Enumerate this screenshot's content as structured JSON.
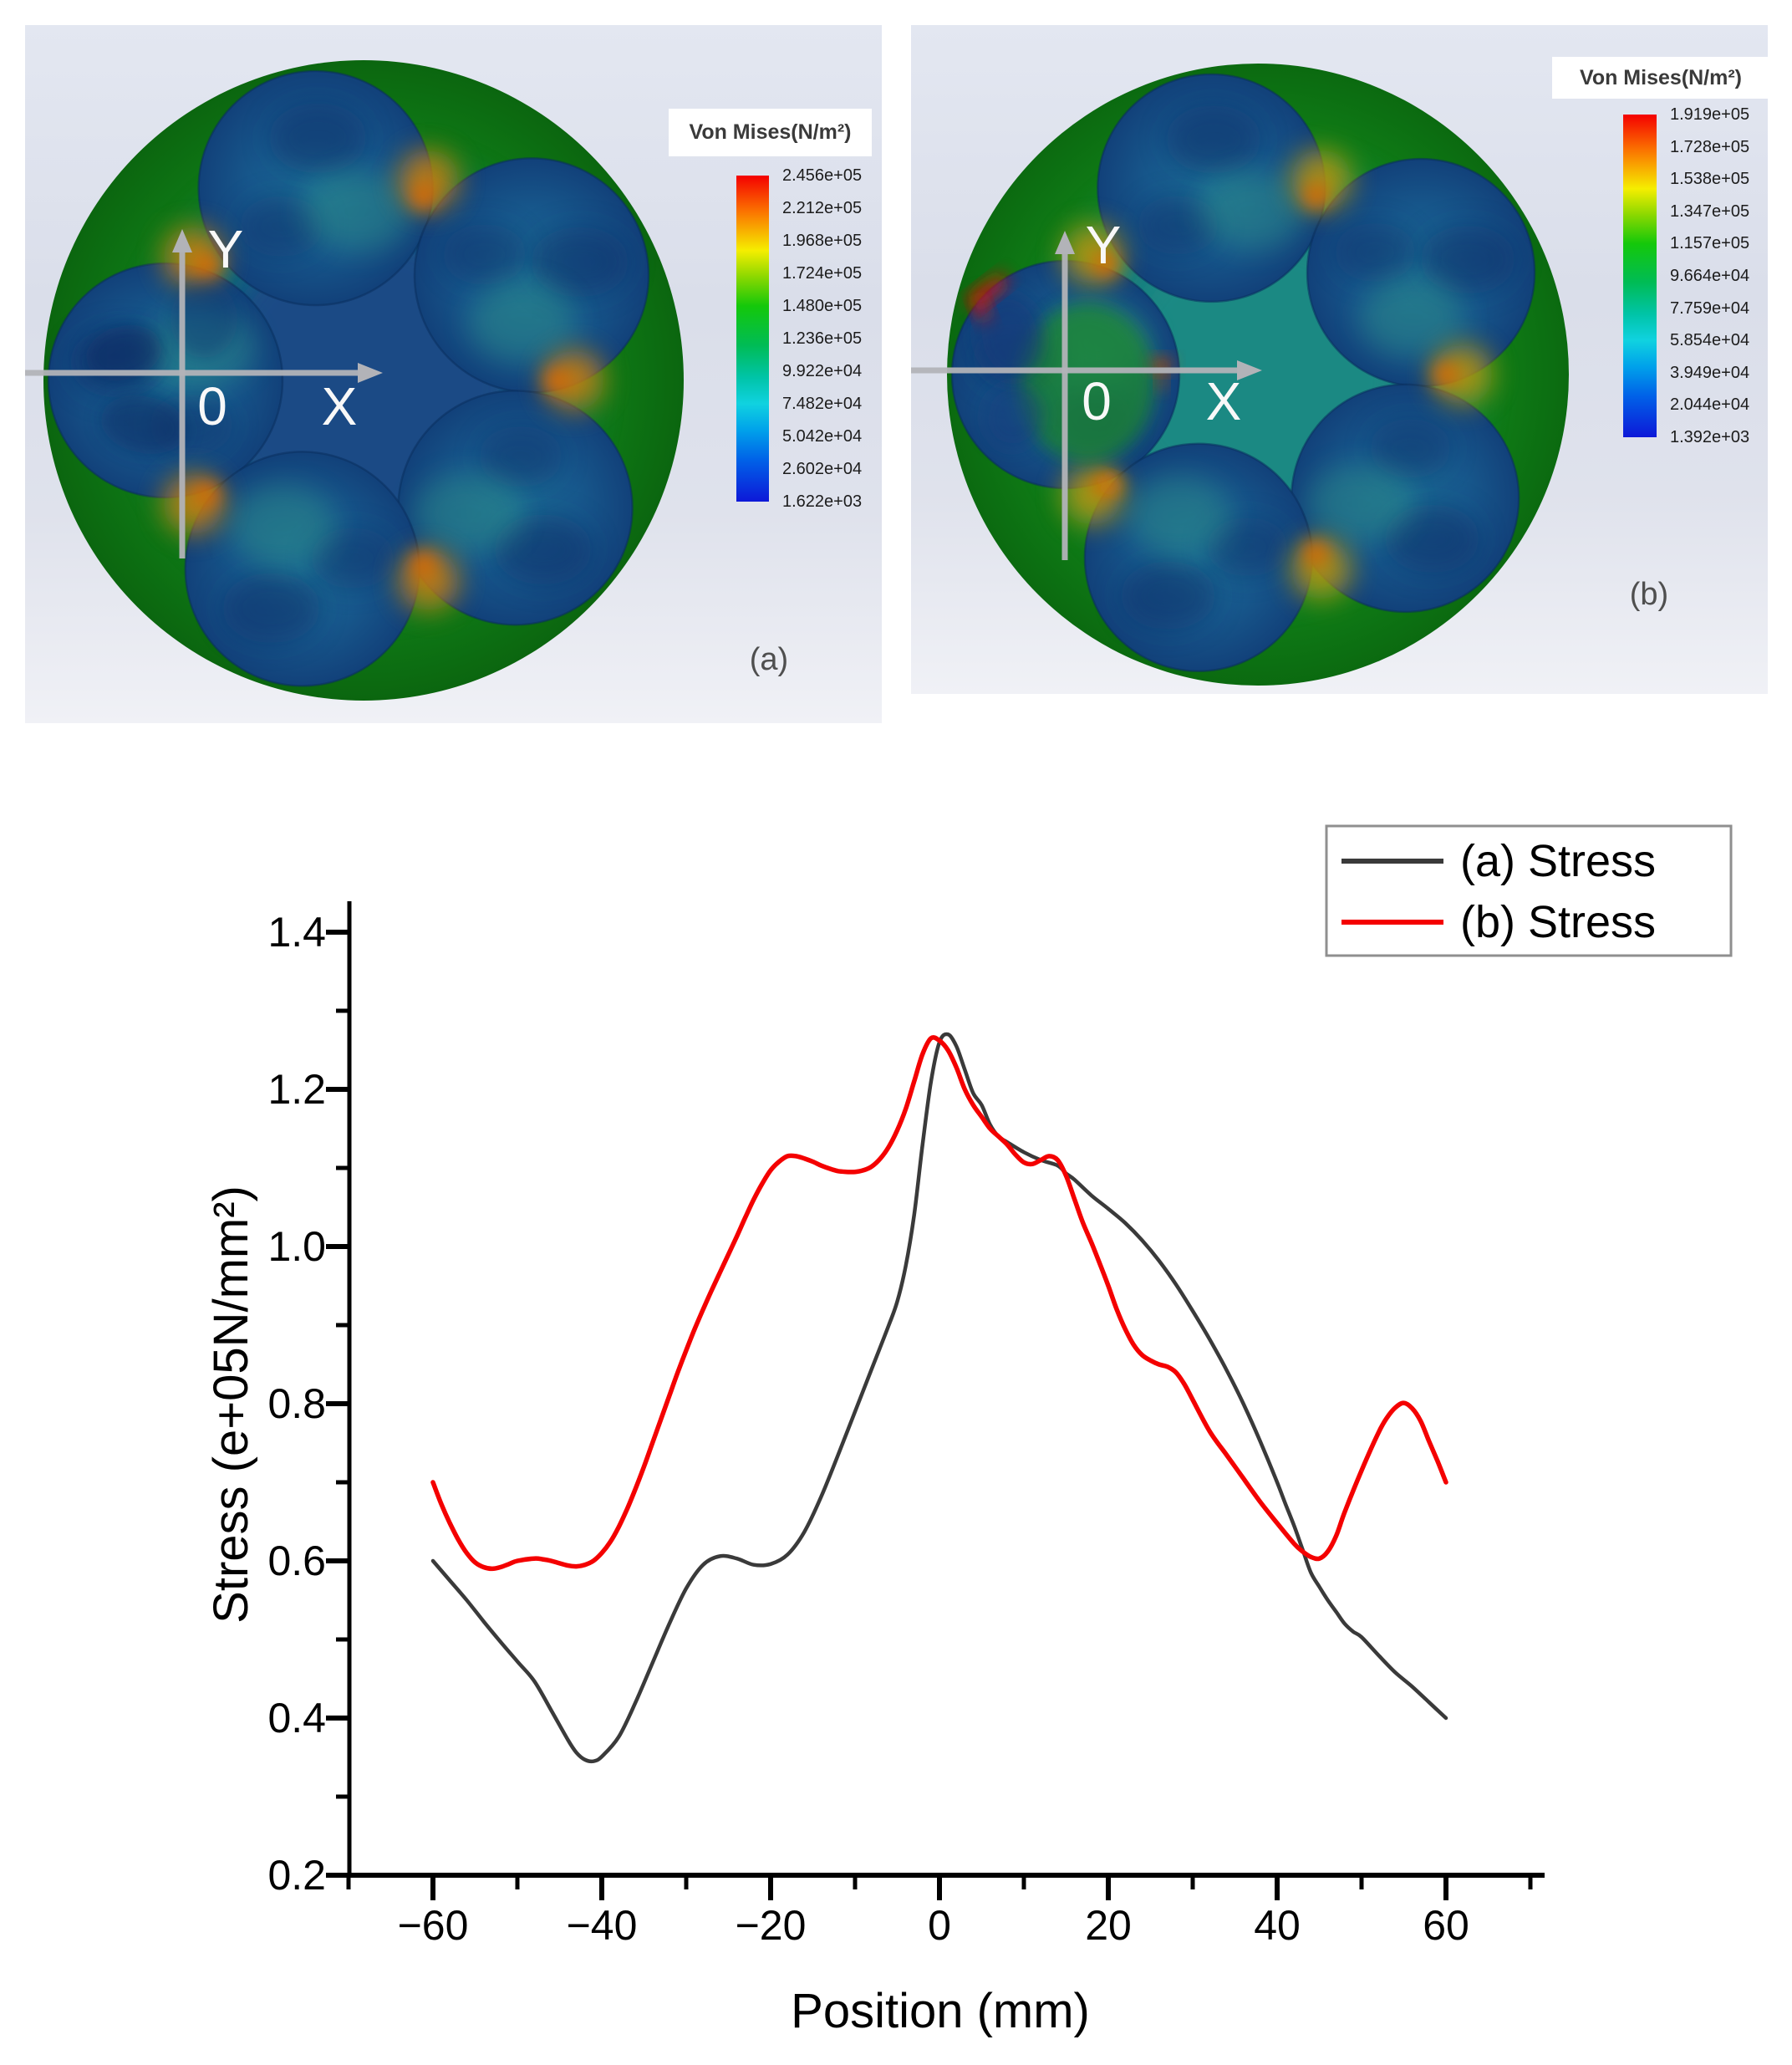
{
  "figure": {
    "panel_a": {
      "caption": "(a)",
      "legend_title": "Von Mises(N/m²)",
      "colorbar_values": [
        "2.456e+05",
        "2.212e+05",
        "1.968e+05",
        "1.724e+05",
        "1.480e+05",
        "1.236e+05",
        "9.922e+04",
        "7.482e+04",
        "5.042e+04",
        "2.602e+04",
        "1.622e+03"
      ]
    },
    "panel_b": {
      "caption": "(b)",
      "legend_title": "Von Mises(N/m²)",
      "colorbar_values": [
        "1.919e+05",
        "1.728e+05",
        "1.538e+05",
        "1.347e+05",
        "1.157e+05",
        "9.664e+04",
        "7.759e+04",
        "5.854e+04",
        "3.949e+04",
        "2.044e+04",
        "1.392e+03"
      ]
    },
    "axes_overlay": {
      "y_label": "Y",
      "x_label": "X",
      "origin_label": "0"
    }
  },
  "chart_data": {
    "type": "line",
    "title": "",
    "xlabel": "Position (mm)",
    "ylabel": "Stress (e+05N/mm²)",
    "xlim": [
      -70,
      71
    ],
    "ylim": [
      0.2,
      1.44
    ],
    "x_ticks": [
      -60,
      -40,
      -20,
      0,
      20,
      40,
      60
    ],
    "x_minor_ticks": [
      -70,
      -50,
      -30,
      -10,
      10,
      30,
      50,
      70
    ],
    "y_ticks": [
      "0.2",
      "0.4",
      "0.6",
      "0.8",
      "1.0",
      "1.2",
      "1.4"
    ],
    "y_minor_ticks": [
      0.3,
      0.5,
      0.7,
      0.9,
      1.1,
      1.3
    ],
    "grid": false,
    "legend_position": "top-right",
    "series": [
      {
        "name": "(a) Stress",
        "color": "#3a3a3a",
        "points": [
          [
            -60,
            0.6
          ],
          [
            -58,
            0.575
          ],
          [
            -56,
            0.55
          ],
          [
            -54,
            0.523
          ],
          [
            -52,
            0.497
          ],
          [
            -50,
            0.472
          ],
          [
            -48,
            0.447
          ],
          [
            -46,
            0.41
          ],
          [
            -44,
            0.372
          ],
          [
            -43,
            0.356
          ],
          [
            -42,
            0.347
          ],
          [
            -41,
            0.345
          ],
          [
            -40,
            0.351
          ],
          [
            -38,
            0.376
          ],
          [
            -36,
            0.42
          ],
          [
            -34,
            0.47
          ],
          [
            -32,
            0.52
          ],
          [
            -30,
            0.565
          ],
          [
            -28,
            0.595
          ],
          [
            -26,
            0.606
          ],
          [
            -24,
            0.603
          ],
          [
            -22,
            0.595
          ],
          [
            -20,
            0.596
          ],
          [
            -18,
            0.608
          ],
          [
            -16,
            0.637
          ],
          [
            -14,
            0.682
          ],
          [
            -12,
            0.735
          ],
          [
            -10,
            0.79
          ],
          [
            -8,
            0.845
          ],
          [
            -6,
            0.9
          ],
          [
            -5,
            0.93
          ],
          [
            -4,
            0.975
          ],
          [
            -3,
            1.04
          ],
          [
            -2,
            1.13
          ],
          [
            -1,
            1.21
          ],
          [
            0,
            1.26
          ],
          [
            1,
            1.27
          ],
          [
            2,
            1.255
          ],
          [
            3,
            1.225
          ],
          [
            4,
            1.195
          ],
          [
            5,
            1.18
          ],
          [
            6,
            1.155
          ],
          [
            7,
            1.14
          ],
          [
            8,
            1.133
          ],
          [
            10,
            1.12
          ],
          [
            12,
            1.11
          ],
          [
            14,
            1.103
          ],
          [
            15,
            1.093
          ],
          [
            16,
            1.085
          ],
          [
            18,
            1.065
          ],
          [
            20,
            1.048
          ],
          [
            22,
            1.03
          ],
          [
            24,
            1.008
          ],
          [
            26,
            0.982
          ],
          [
            28,
            0.952
          ],
          [
            30,
            0.918
          ],
          [
            32,
            0.882
          ],
          [
            34,
            0.843
          ],
          [
            36,
            0.8
          ],
          [
            38,
            0.752
          ],
          [
            40,
            0.7
          ],
          [
            41,
            0.672
          ],
          [
            42,
            0.645
          ],
          [
            43,
            0.615
          ],
          [
            44,
            0.585
          ],
          [
            45,
            0.567
          ],
          [
            46,
            0.55
          ],
          [
            47,
            0.535
          ],
          [
            48,
            0.52
          ],
          [
            49,
            0.51
          ],
          [
            50,
            0.503
          ],
          [
            52,
            0.48
          ],
          [
            54,
            0.458
          ],
          [
            56,
            0.44
          ],
          [
            58,
            0.42
          ],
          [
            60,
            0.4
          ]
        ]
      },
      {
        "name": "(b) Stress",
        "color": "#f40000",
        "points": [
          [
            -60,
            0.7
          ],
          [
            -59,
            0.672
          ],
          [
            -58,
            0.648
          ],
          [
            -57,
            0.627
          ],
          [
            -56,
            0.61
          ],
          [
            -55,
            0.598
          ],
          [
            -54,
            0.592
          ],
          [
            -53,
            0.59
          ],
          [
            -52,
            0.592
          ],
          [
            -51,
            0.596
          ],
          [
            -50,
            0.6
          ],
          [
            -48,
            0.603
          ],
          [
            -47,
            0.602
          ],
          [
            -46,
            0.6
          ],
          [
            -44,
            0.594
          ],
          [
            -43,
            0.593
          ],
          [
            -42,
            0.595
          ],
          [
            -41,
            0.6
          ],
          [
            -40,
            0.61
          ],
          [
            -39,
            0.624
          ],
          [
            -38,
            0.643
          ],
          [
            -37,
            0.666
          ],
          [
            -36,
            0.692
          ],
          [
            -35,
            0.72
          ],
          [
            -34,
            0.75
          ],
          [
            -33,
            0.78
          ],
          [
            -32,
            0.81
          ],
          [
            -31,
            0.84
          ],
          [
            -30,
            0.868
          ],
          [
            -29,
            0.895
          ],
          [
            -28,
            0.92
          ],
          [
            -27,
            0.944
          ],
          [
            -26,
            0.967
          ],
          [
            -25,
            0.99
          ],
          [
            -24,
            1.013
          ],
          [
            -23,
            1.037
          ],
          [
            -22,
            1.06
          ],
          [
            -21,
            1.08
          ],
          [
            -20,
            1.097
          ],
          [
            -19,
            1.108
          ],
          [
            -18,
            1.115
          ],
          [
            -17,
            1.115
          ],
          [
            -16,
            1.112
          ],
          [
            -15,
            1.108
          ],
          [
            -14,
            1.103
          ],
          [
            -13,
            1.099
          ],
          [
            -12,
            1.096
          ],
          [
            -11,
            1.095
          ],
          [
            -10,
            1.095
          ],
          [
            -9,
            1.097
          ],
          [
            -8,
            1.102
          ],
          [
            -7,
            1.112
          ],
          [
            -6,
            1.127
          ],
          [
            -5,
            1.148
          ],
          [
            -4,
            1.175
          ],
          [
            -3,
            1.21
          ],
          [
            -2,
            1.245
          ],
          [
            -1,
            1.265
          ],
          [
            0,
            1.262
          ],
          [
            1,
            1.25
          ],
          [
            2,
            1.228
          ],
          [
            3,
            1.2
          ],
          [
            4,
            1.18
          ],
          [
            5,
            1.165
          ],
          [
            6,
            1.15
          ],
          [
            7,
            1.14
          ],
          [
            8,
            1.13
          ],
          [
            9,
            1.117
          ],
          [
            10,
            1.107
          ],
          [
            11,
            1.105
          ],
          [
            12,
            1.11
          ],
          [
            13,
            1.115
          ],
          [
            14,
            1.11
          ],
          [
            15,
            1.09
          ],
          [
            16,
            1.06
          ],
          [
            17,
            1.03
          ],
          [
            18,
            1.005
          ],
          [
            19,
            0.978
          ],
          [
            20,
            0.95
          ],
          [
            21,
            0.92
          ],
          [
            22,
            0.895
          ],
          [
            23,
            0.875
          ],
          [
            24,
            0.862
          ],
          [
            25,
            0.855
          ],
          [
            26,
            0.85
          ],
          [
            27,
            0.847
          ],
          [
            28,
            0.84
          ],
          [
            29,
            0.825
          ],
          [
            30,
            0.805
          ],
          [
            32,
            0.765
          ],
          [
            34,
            0.735
          ],
          [
            35,
            0.72
          ],
          [
            36,
            0.705
          ],
          [
            38,
            0.675
          ],
          [
            40,
            0.648
          ],
          [
            42,
            0.622
          ],
          [
            43,
            0.612
          ],
          [
            44,
            0.605
          ],
          [
            45,
            0.603
          ],
          [
            46,
            0.612
          ],
          [
            47,
            0.632
          ],
          [
            48,
            0.662
          ],
          [
            50,
            0.715
          ],
          [
            52,
            0.763
          ],
          [
            53,
            0.782
          ],
          [
            54,
            0.795
          ],
          [
            55,
            0.801
          ],
          [
            56,
            0.794
          ],
          [
            57,
            0.778
          ],
          [
            58,
            0.752
          ],
          [
            59,
            0.727
          ],
          [
            60,
            0.7
          ]
        ]
      }
    ]
  }
}
